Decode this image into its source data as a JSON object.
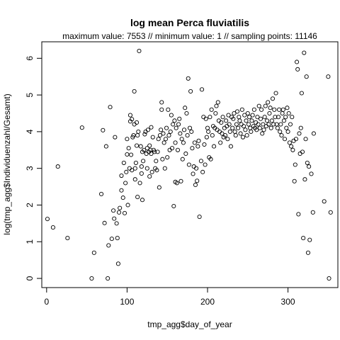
{
  "chart_data": {
    "type": "scatter",
    "title": "log mean Perca fluviatilis",
    "subtitle": "maximum value: 7553  //  minimum value: 1  // sampling points: 11146",
    "xlabel": "tmp_agg$day_of_year",
    "ylabel": "log(tmp_agg$Individuenzahl/Gesamt)",
    "xlim": [
      -6,
      362
    ],
    "ylim": [
      -0.25,
      6.45
    ],
    "xticks": [
      0,
      100,
      200,
      300
    ],
    "yticks": [
      0,
      1,
      2,
      3,
      4,
      5,
      6
    ],
    "grid": false,
    "marker": "open-circle",
    "points": [
      [
        1,
        1.62
      ],
      [
        8,
        1.39
      ],
      [
        14,
        3.05
      ],
      [
        26,
        1.1
      ],
      [
        44,
        4.11
      ],
      [
        56,
        0.0
      ],
      [
        59,
        0.7
      ],
      [
        68,
        2.3
      ],
      [
        70,
        4.04
      ],
      [
        72,
        1.51
      ],
      [
        74,
        3.6
      ],
      [
        76,
        0.0
      ],
      [
        77,
        0.9
      ],
      [
        79,
        4.67
      ],
      [
        81,
        1.08
      ],
      [
        83,
        1.85
      ],
      [
        84,
        1.63
      ],
      [
        85,
        3.85
      ],
      [
        87,
        1.5
      ],
      [
        88,
        1.1
      ],
      [
        89,
        0.4
      ],
      [
        90,
        1.8
      ],
      [
        91,
        1.92
      ],
      [
        93,
        2.4
      ],
      [
        93,
        2.8
      ],
      [
        95,
        2.2
      ],
      [
        96,
        3.15
      ],
      [
        97,
        1.78
      ],
      [
        98,
        2.6
      ],
      [
        99,
        2.9
      ],
      [
        100,
        3.38
      ],
      [
        100,
        3.8
      ],
      [
        101,
        2.0
      ],
      [
        102,
        3.55
      ],
      [
        103,
        3.0
      ],
      [
        104,
        4.45
      ],
      [
        104,
        4.28
      ],
      [
        105,
        3.37
      ],
      [
        106,
        2.95
      ],
      [
        106,
        4.34
      ],
      [
        107,
        3.85
      ],
      [
        108,
        3.9
      ],
      [
        109,
        5.1
      ],
      [
        109,
        4.2
      ],
      [
        110,
        3.0
      ],
      [
        110,
        2.7
      ],
      [
        111,
        3.15
      ],
      [
        112,
        3.62
      ],
      [
        112,
        4.25
      ],
      [
        113,
        2.22
      ],
      [
        113,
        3.9
      ],
      [
        114,
        4.0
      ],
      [
        115,
        6.2
      ],
      [
        116,
        2.6
      ],
      [
        117,
        3.6
      ],
      [
        118,
        2.86
      ],
      [
        118,
        3.05
      ],
      [
        119,
        3.45
      ],
      [
        119,
        2.14
      ],
      [
        120,
        3.2
      ],
      [
        121,
        3.5
      ],
      [
        122,
        3.93
      ],
      [
        123,
        4.0
      ],
      [
        124,
        3.4
      ],
      [
        125,
        3.0
      ],
      [
        125,
        3.55
      ],
      [
        126,
        4.05
      ],
      [
        127,
        3.45
      ],
      [
        128,
        2.78
      ],
      [
        128,
        3.62
      ],
      [
        129,
        3.5
      ],
      [
        130,
        4.12
      ],
      [
        130,
        3.4
      ],
      [
        131,
        2.9
      ],
      [
        132,
        3.85
      ],
      [
        133,
        3.5
      ],
      [
        134,
        3.45
      ],
      [
        135,
        3.0
      ],
      [
        136,
        3.2
      ],
      [
        137,
        2.95
      ],
      [
        138,
        3.45
      ],
      [
        139,
        3.8
      ],
      [
        140,
        2.48
      ],
      [
        141,
        3.9
      ],
      [
        142,
        4.05
      ],
      [
        143,
        4.6
      ],
      [
        143,
        4.8
      ],
      [
        144,
        3.25
      ],
      [
        145,
        3.95
      ],
      [
        146,
        3.7
      ],
      [
        147,
        3.0
      ],
      [
        148,
        3.8
      ],
      [
        149,
        4.1
      ],
      [
        150,
        3.3
      ],
      [
        151,
        4.6
      ],
      [
        152,
        3.9
      ],
      [
        153,
        3.5
      ],
      [
        154,
        4.0
      ],
      [
        155,
        4.45
      ],
      [
        156,
        3.55
      ],
      [
        157,
        4.2
      ],
      [
        158,
        1.97
      ],
      [
        159,
        4.3
      ],
      [
        160,
        2.63
      ],
      [
        160,
        3.7
      ],
      [
        161,
        4.1
      ],
      [
        162,
        2.6
      ],
      [
        163,
        3.5
      ],
      [
        164,
        4.2
      ],
      [
        165,
        4.35
      ],
      [
        166,
        3.95
      ],
      [
        167,
        2.65
      ],
      [
        168,
        3.8
      ],
      [
        169,
        3.25
      ],
      [
        170,
        3.7
      ],
      [
        171,
        4.05
      ],
      [
        172,
        4.65
      ],
      [
        173,
        3.4
      ],
      [
        174,
        4.5
      ],
      [
        175,
        3.9
      ],
      [
        176,
        5.45
      ],
      [
        177,
        3.1
      ],
      [
        178,
        4.1
      ],
      [
        179,
        5.1
      ],
      [
        180,
        4.0
      ],
      [
        181,
        3.55
      ],
      [
        182,
        2.85
      ],
      [
        183,
        3.05
      ],
      [
        184,
        3.7
      ],
      [
        185,
        2.55
      ],
      [
        186,
        3.0
      ],
      [
        187,
        2.66
      ],
      [
        188,
        3.6
      ],
      [
        189,
        3.75
      ],
      [
        190,
        1.68
      ],
      [
        192,
        3.2
      ],
      [
        193,
        5.15
      ],
      [
        194,
        2.9
      ],
      [
        195,
        4.4
      ],
      [
        196,
        3.65
      ],
      [
        197,
        3.1
      ],
      [
        198,
        4.35
      ],
      [
        199,
        3.85
      ],
      [
        200,
        4.1
      ],
      [
        201,
        4.0
      ],
      [
        202,
        3.3
      ],
      [
        203,
        4.4
      ],
      [
        204,
        3.25
      ],
      [
        205,
        4.6
      ],
      [
        206,
        3.9
      ],
      [
        207,
        4.15
      ],
      [
        208,
        3.6
      ],
      [
        209,
        4.1
      ],
      [
        210,
        4.5
      ],
      [
        211,
        4.7
      ],
      [
        212,
        4.05
      ],
      [
        213,
        4.8
      ],
      [
        214,
        4.3
      ],
      [
        215,
        4.0
      ],
      [
        216,
        3.7
      ],
      [
        217,
        4.25
      ],
      [
        218,
        3.95
      ],
      [
        219,
        4.4
      ],
      [
        220,
        3.85
      ],
      [
        221,
        4.1
      ],
      [
        222,
        3.9
      ],
      [
        223,
        4.3
      ],
      [
        224,
        4.15
      ],
      [
        225,
        3.8
      ],
      [
        226,
        4.45
      ],
      [
        227,
        4.2
      ],
      [
        228,
        4.0
      ],
      [
        229,
        3.6
      ],
      [
        230,
        4.4
      ],
      [
        231,
        4.1
      ],
      [
        232,
        4.35
      ],
      [
        233,
        4.5
      ],
      [
        234,
        4.0
      ],
      [
        235,
        3.9
      ],
      [
        236,
        4.2
      ],
      [
        237,
        4.55
      ],
      [
        238,
        4.1
      ],
      [
        239,
        4.4
      ],
      [
        240,
        4.3
      ],
      [
        241,
        3.95
      ],
      [
        242,
        4.2
      ],
      [
        243,
        4.6
      ],
      [
        244,
        3.85
      ],
      [
        245,
        4.15
      ],
      [
        246,
        4.45
      ],
      [
        247,
        4.05
      ],
      [
        248,
        4.3
      ],
      [
        249,
        3.9
      ],
      [
        250,
        4.5
      ],
      [
        251,
        4.2
      ],
      [
        252,
        4.4
      ],
      [
        253,
        4.1
      ],
      [
        254,
        4.0
      ],
      [
        255,
        4.3
      ],
      [
        256,
        4.45
      ],
      [
        257,
        4.15
      ],
      [
        258,
        4.6
      ],
      [
        259,
        4.1
      ],
      [
        260,
        4.25
      ],
      [
        261,
        4.05
      ],
      [
        262,
        4.4
      ],
      [
        263,
        4.2
      ],
      [
        264,
        4.7
      ],
      [
        265,
        4.1
      ],
      [
        266,
        4.35
      ],
      [
        267,
        4.6
      ],
      [
        268,
        3.95
      ],
      [
        269,
        4.2
      ],
      [
        270,
        4.05
      ],
      [
        271,
        4.4
      ],
      [
        272,
        4.7
      ],
      [
        273,
        4.15
      ],
      [
        274,
        4.3
      ],
      [
        275,
        4.8
      ],
      [
        276,
        4.2
      ],
      [
        277,
        4.5
      ],
      [
        278,
        4.65
      ],
      [
        279,
        4.1
      ],
      [
        280,
        4.3
      ],
      [
        281,
        4.9
      ],
      [
        282,
        4.2
      ],
      [
        283,
        4.6
      ],
      [
        284,
        4.4
      ],
      [
        285,
        5.05
      ],
      [
        286,
        4.2
      ],
      [
        287,
        4.1
      ],
      [
        288,
        4.4
      ],
      [
        289,
        4.6
      ],
      [
        290,
        4.0
      ],
      [
        291,
        4.2
      ],
      [
        292,
        3.9
      ],
      [
        293,
        4.5
      ],
      [
        294,
        4.6
      ],
      [
        295,
        4.3
      ],
      [
        296,
        3.8
      ],
      [
        297,
        4.4
      ],
      [
        298,
        4.1
      ],
      [
        299,
        4.65
      ],
      [
        300,
        4.0
      ],
      [
        301,
        4.5
      ],
      [
        302,
        3.7
      ],
      [
        303,
        4.2
      ],
      [
        304,
        3.6
      ],
      [
        305,
        4.4
      ],
      [
        306,
        3.5
      ],
      [
        307,
        3.75
      ],
      [
        308,
        2.65
      ],
      [
        309,
        3.1
      ],
      [
        310,
        3.8
      ],
      [
        311,
        5.9
      ],
      [
        312,
        5.7
      ],
      [
        313,
        1.75
      ],
      [
        314,
        3.95
      ],
      [
        315,
        3.4
      ],
      [
        316,
        4.1
      ],
      [
        317,
        5.05
      ],
      [
        318,
        3.45
      ],
      [
        319,
        1.1
      ],
      [
        320,
        6.15
      ],
      [
        321,
        2.7
      ],
      [
        322,
        3.8
      ],
      [
        323,
        5.5
      ],
      [
        324,
        3.15
      ],
      [
        325,
        0.7
      ],
      [
        326,
        3.05
      ],
      [
        327,
        1.05
      ],
      [
        329,
        2.85
      ],
      [
        331,
        1.8
      ],
      [
        332,
        3.95
      ],
      [
        345,
        2.1
      ],
      [
        350,
        5.5
      ],
      [
        351,
        0.0
      ],
      [
        353,
        1.8
      ]
    ]
  }
}
